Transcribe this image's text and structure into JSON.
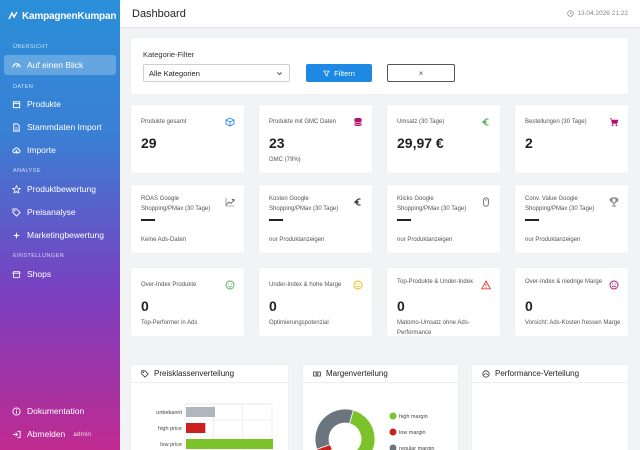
{
  "brand": {
    "name": "KampagnenKumpan"
  },
  "sidebar": {
    "sections": [
      "ÜBERSICHT",
      "DATEN",
      "ANALYSE",
      "EINSTELLUNGEN"
    ],
    "items": [
      {
        "label": "Auf einen Blick",
        "icon": "dashboard-icon",
        "active": true
      },
      {
        "label": "Produkte",
        "icon": "box-icon"
      },
      {
        "label": "Stammdaten Import",
        "icon": "file-icon"
      },
      {
        "label": "Importe",
        "icon": "cloud-icon"
      },
      {
        "label": "Produktbewertung",
        "icon": "star-icon"
      },
      {
        "label": "Preisanalyse",
        "icon": "tag-icon"
      },
      {
        "label": "Marketingbewertung",
        "icon": "sparkle-icon"
      },
      {
        "label": "Shops",
        "icon": "store-icon"
      }
    ],
    "footer": [
      {
        "label": "Dokumentation",
        "icon": "info-icon"
      },
      {
        "label": "Abmelden",
        "icon": "logout-icon",
        "tag": "admin"
      }
    ]
  },
  "header": {
    "title": "Dashboard",
    "timestamp": "13.04.2026 21:22"
  },
  "filter": {
    "label": "Kategorie-Filter",
    "selected": "Alle Kategorien",
    "apply_label": "Filtern",
    "clear_label": "×"
  },
  "kpis": [
    {
      "label": "Produkte gesamt",
      "value": "29",
      "sub": "",
      "icon": "cube-icon",
      "color": "#2e86de"
    },
    {
      "label": "Produkte mit GMC Daten",
      "value": "23",
      "sub": "GMC (79%)",
      "icon": "database-icon",
      "color": "#b0126f"
    },
    {
      "label": "Umsatz (30 Tage)",
      "value": "29,97 €",
      "sub": "",
      "icon": "euro-icon",
      "color": "#4caf50"
    },
    {
      "label": "Bestellungen (30 Tage)",
      "value": "2",
      "sub": "",
      "icon": "cart-icon",
      "color": "#b0126f"
    },
    {
      "label": "ROAS Google Shopping/PMax (30 Tage)",
      "value": "",
      "sub": "Keine Ads-Daten",
      "icon": "trend-icon",
      "color": "#666666"
    },
    {
      "label": "Kosten Google Shopping/PMax (30 Tage)",
      "value": "",
      "sub": "nur Produktanzeigen",
      "icon": "euro-icon",
      "color": "#333333"
    },
    {
      "label": "Klicks Google Shopping/PMax (30 Tage)",
      "value": "",
      "sub": "nur Produktanzeigen",
      "icon": "mouse-icon",
      "color": "#666666"
    },
    {
      "label": "Conv. Value Google Shopping/PMax (30 Tage)",
      "value": "",
      "sub": "nur Produktanzeigen",
      "icon": "trophy-icon",
      "color": "#666666"
    },
    {
      "label": "Over-Index Produkte",
      "value": "0",
      "sub": "Top-Performer in Ads",
      "icon": "smile-icon",
      "color": "#4caf50"
    },
    {
      "label": "Under-Index & hohe Marge",
      "value": "0",
      "sub": "Optimierungspotenzial",
      "icon": "meh-icon",
      "color": "#f5b400"
    },
    {
      "label": "Top-Produkte & Under-Index",
      "value": "0",
      "sub": "Matomo-Umsatz ohne Ads-Performance",
      "icon": "warning-icon",
      "color": "#e53935"
    },
    {
      "label": "Over-Index & niedrige Marge",
      "value": "0",
      "sub": "Vorsicht: Ads-Kosten fressen Marge",
      "icon": "frown-icon",
      "color": "#b0126f"
    }
  ],
  "panels": [
    {
      "title": "Preisklassenverteilung",
      "icon": "tags-icon"
    },
    {
      "title": "Margenverteilung",
      "icon": "money-icon"
    },
    {
      "title": "Performance-Verteilung",
      "icon": "gauge-icon"
    }
  ],
  "chart_data": [
    {
      "type": "bar",
      "orientation": "horizontal",
      "title": "Preisklassenverteilung",
      "categories": [
        "unbekannt",
        "high price",
        "low price"
      ],
      "values": [
        6,
        4,
        18
      ],
      "colors": [
        "#b0b6bd",
        "#cc1f1f",
        "#7cc22a"
      ],
      "xlim": [
        0,
        18
      ]
    },
    {
      "type": "pie",
      "title": "Margenverteilung",
      "legend_position": "right",
      "categories": [
        "high margin",
        "low margin",
        "regular margin"
      ],
      "values": [
        60,
        5,
        35
      ],
      "colors": [
        "#7cc22a",
        "#cc1f1f",
        "#6c757d"
      ]
    }
  ]
}
